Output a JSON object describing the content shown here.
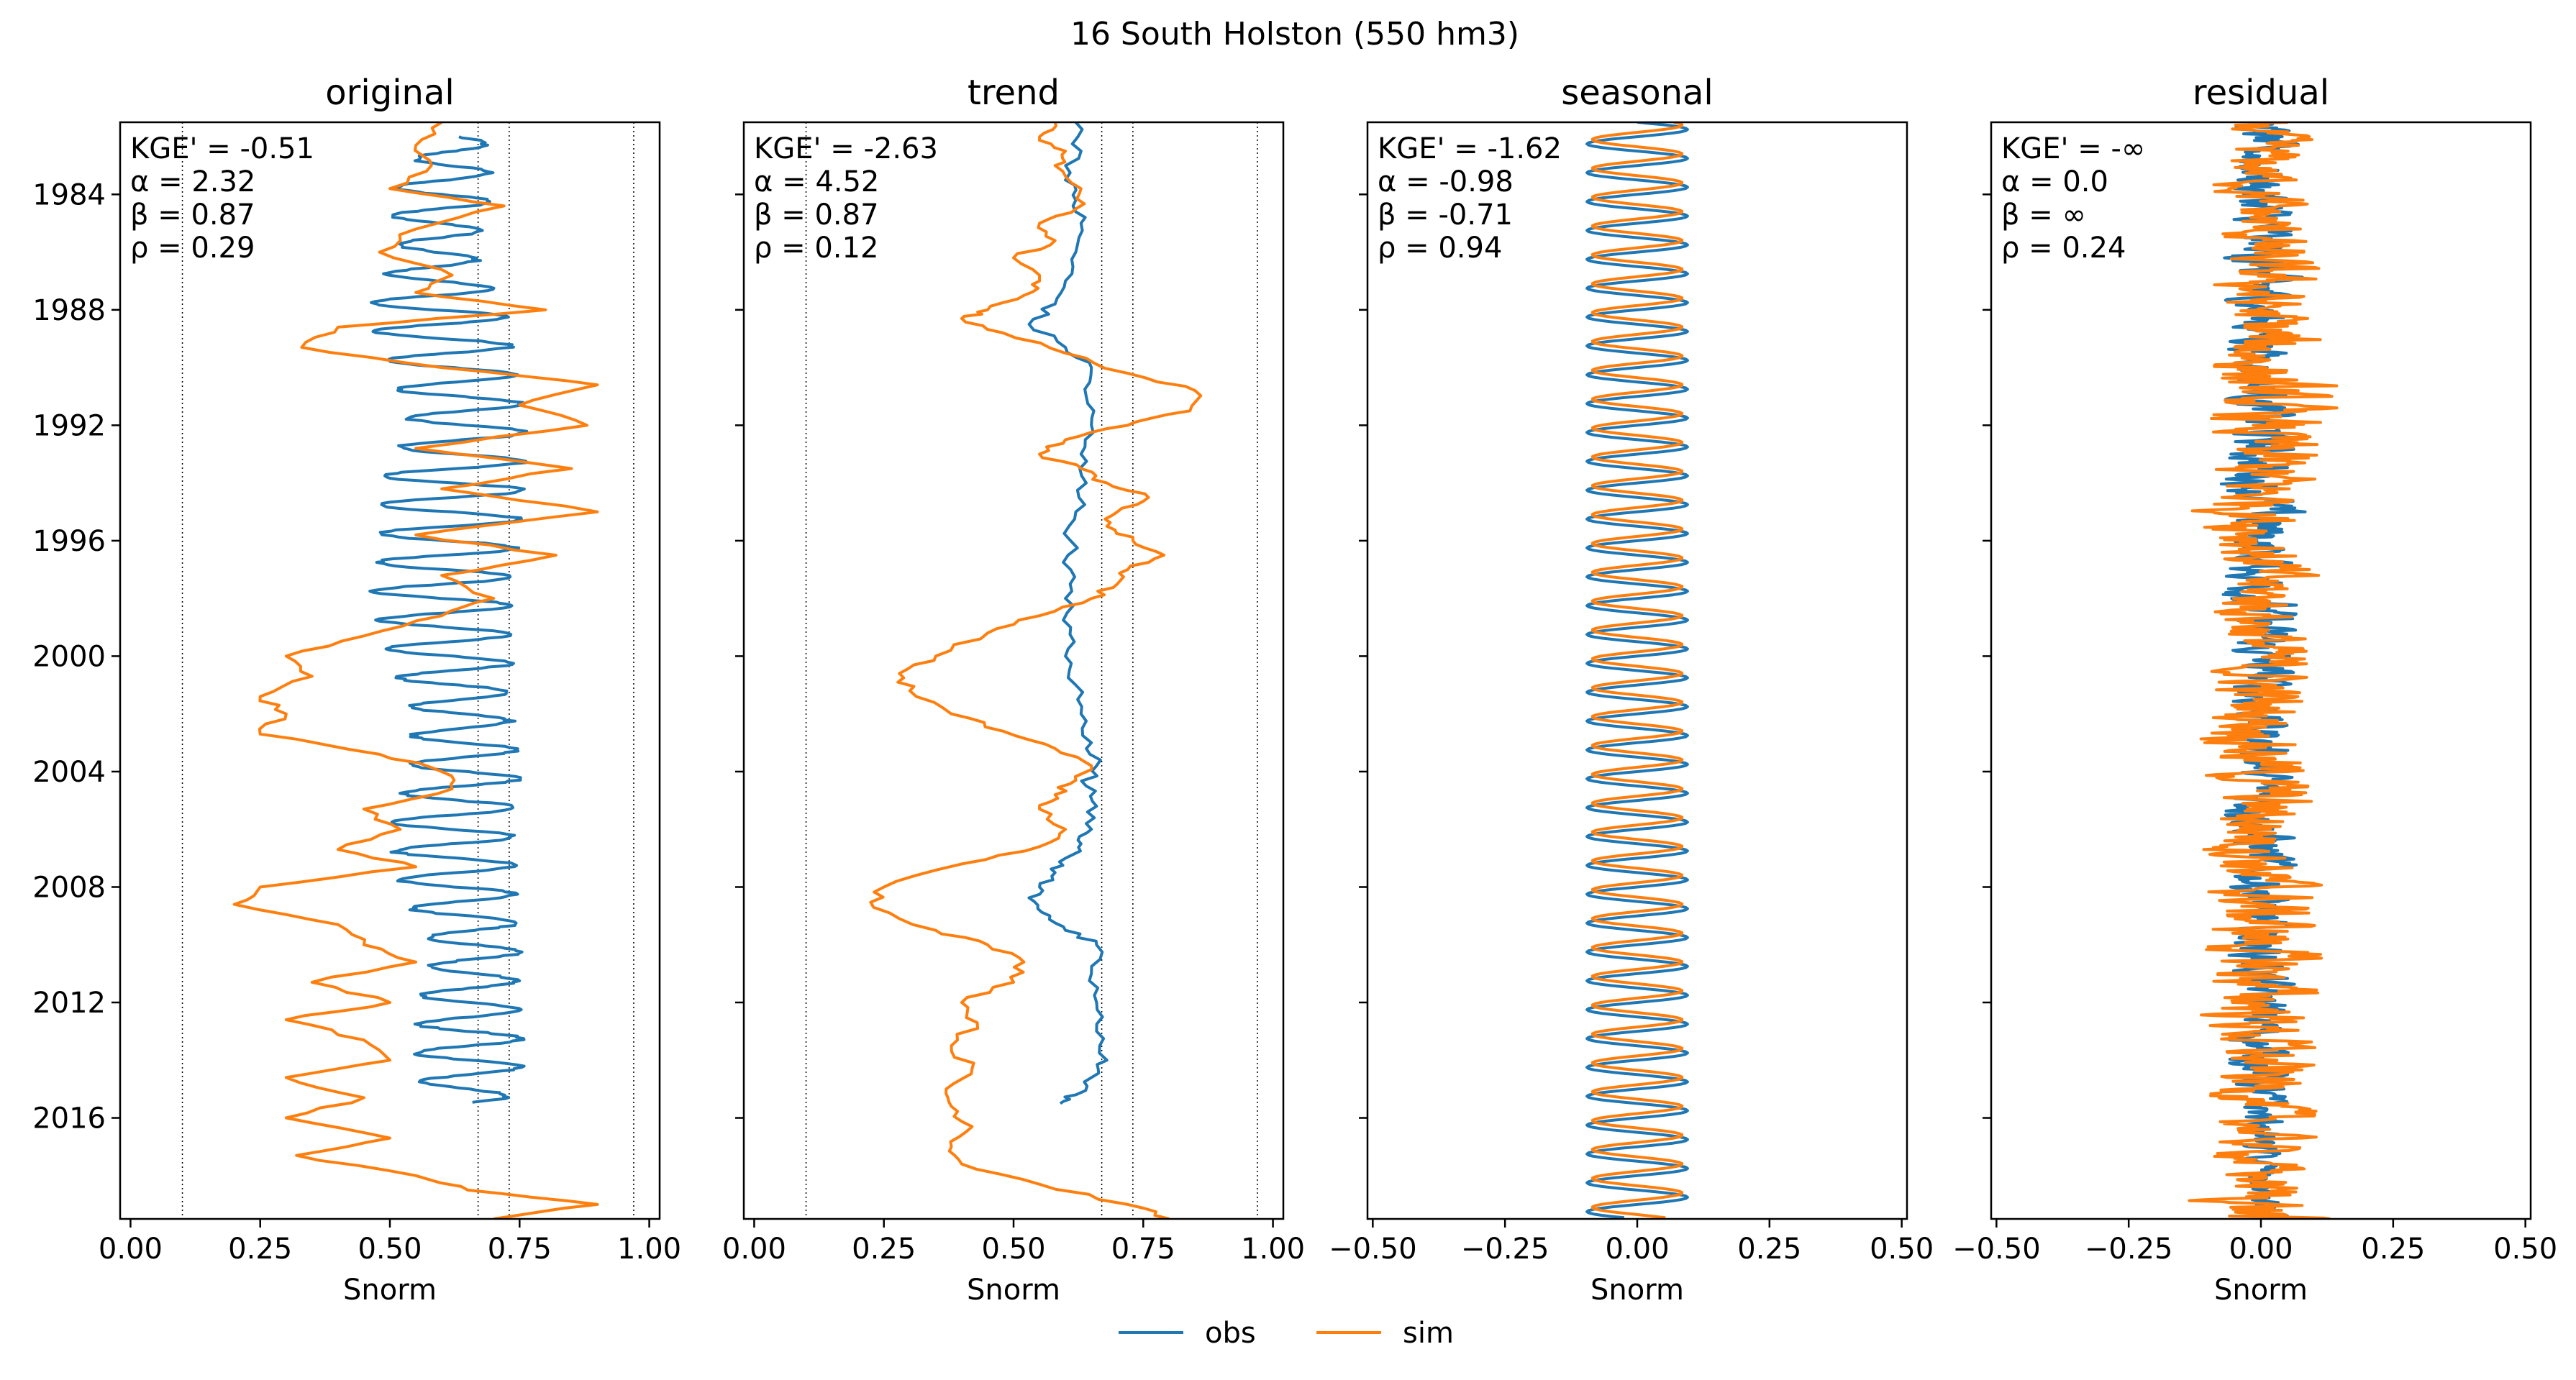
{
  "figure": {
    "suptitle": "16  South Holston (550 hm3)",
    "legend": [
      {
        "label": "obs",
        "color": "#1f77b4"
      },
      {
        "label": "sim",
        "color": "#ff7f0e"
      }
    ]
  },
  "chart_data": [
    {
      "type": "line",
      "title": "original",
      "xlabel": "Snorm",
      "ylabel": "",
      "orientation": "vertical-time",
      "xlim": [
        -0.02,
        1.02
      ],
      "ylim": [
        1981.5,
        2019.5
      ],
      "xticks": [
        0,
        0.25,
        0.5,
        0.75,
        1
      ],
      "xtick_labels": [
        "0.00",
        "0.25",
        "0.50",
        "0.75",
        "1.00"
      ],
      "yticks": [
        1984,
        1988,
        1992,
        1996,
        2000,
        2004,
        2008,
        2012,
        2016
      ],
      "ytick_labels": [
        "1984",
        "1988",
        "1992",
        "1996",
        "2000",
        "2004",
        "2008",
        "2012",
        "2016"
      ],
      "ref_lines": [
        0.1,
        0.67,
        0.73,
        0.97
      ],
      "annotations": [
        "KGE' = -0.51",
        "α = 2.32",
        "β = 0.87",
        "ρ = 0.29"
      ],
      "series": [
        {
          "name": "obs",
          "color": "#1f77b4",
          "kind": "seasonal",
          "y": [
            1982,
            1984,
            1986,
            1988,
            1990,
            1992,
            1994,
            1996,
            1998,
            2000,
            2002,
            2004,
            2006,
            2008,
            2010,
            2012,
            2014,
            2015.5
          ],
          "min": [
            0.58,
            0.5,
            0.52,
            0.46,
            0.5,
            0.54,
            0.48,
            0.48,
            0.47,
            0.5,
            0.55,
            0.54,
            0.5,
            0.52,
            0.58,
            0.56,
            0.55,
            0.58
          ],
          "max": [
            0.68,
            0.7,
            0.66,
            0.72,
            0.74,
            0.76,
            0.76,
            0.74,
            0.74,
            0.73,
            0.73,
            0.75,
            0.74,
            0.74,
            0.75,
            0.75,
            0.76,
            0.72
          ]
        },
        {
          "name": "sim",
          "color": "#ff7f0e",
          "kind": "line",
          "y": [
            1981.5,
            1982.3,
            1983,
            1983.8,
            1984.4,
            1985.2,
            1986,
            1986.8,
            1987.4,
            1988,
            1988.6,
            1989.3,
            1990,
            1990.6,
            1991.3,
            1992,
            1992.8,
            1993.5,
            1994.2,
            1995,
            1995.8,
            1996.5,
            1997.2,
            1998,
            1998.6,
            1999.3,
            2000,
            2000.7,
            2001.4,
            2002,
            2002.7,
            2003.4,
            2004,
            2004.6,
            2005.3,
            2006,
            2006.7,
            2007.3,
            2008,
            2008.6,
            2009.3,
            2010,
            2010.6,
            2011.3,
            2012,
            2012.6,
            2013.3,
            2014,
            2014.6,
            2015.3,
            2016,
            2016.7,
            2017.3,
            2018,
            2018.5,
            2019,
            2019.5
          ],
          "x": [
            0.6,
            0.55,
            0.58,
            0.5,
            0.72,
            0.55,
            0.48,
            0.62,
            0.55,
            0.8,
            0.4,
            0.33,
            0.6,
            0.9,
            0.75,
            0.88,
            0.55,
            0.85,
            0.6,
            0.9,
            0.55,
            0.82,
            0.6,
            0.7,
            0.6,
            0.45,
            0.3,
            0.35,
            0.25,
            0.3,
            0.25,
            0.48,
            0.6,
            0.62,
            0.45,
            0.52,
            0.4,
            0.55,
            0.25,
            0.2,
            0.4,
            0.45,
            0.55,
            0.35,
            0.5,
            0.3,
            0.45,
            0.5,
            0.3,
            0.45,
            0.3,
            0.5,
            0.32,
            0.55,
            0.65,
            0.9,
            0.7
          ]
        }
      ]
    },
    {
      "type": "line",
      "title": "trend",
      "xlabel": "Snorm",
      "ylabel": "",
      "orientation": "vertical-time",
      "xlim": [
        -0.02,
        1.02
      ],
      "ylim": [
        1981.5,
        2019.5
      ],
      "xticks": [
        0,
        0.25,
        0.5,
        0.75,
        1
      ],
      "xtick_labels": [
        "0.00",
        "0.25",
        "0.50",
        "0.75",
        "1.00"
      ],
      "yticks": [
        1984,
        1988,
        1992,
        1996,
        2000,
        2004,
        2008,
        2012,
        2016
      ],
      "ytick_labels": [],
      "ref_lines": [
        0.1,
        0.67,
        0.73,
        0.97
      ],
      "annotations": [
        "KGE' = -2.63",
        "α = 4.52",
        "β = 0.87",
        "ρ = 0.12"
      ],
      "series": [
        {
          "name": "obs",
          "color": "#1f77b4",
          "kind": "line",
          "y": [
            1981.5,
            1982.5,
            1983.5,
            1984.2,
            1985,
            1986,
            1987,
            1987.8,
            1988.5,
            1989.3,
            1990,
            1991,
            1992,
            1993,
            1994,
            1995,
            1996,
            1997,
            1998,
            1999,
            2000,
            2001,
            2002,
            2003,
            2003.8,
            2004.5,
            2005.2,
            2006,
            2006.5,
            2007,
            2007.5,
            2008,
            2008.5,
            2009,
            2009.5,
            2010,
            2011,
            2012,
            2013,
            2014,
            2014.6,
            2015.2,
            2015.5
          ],
          "x": [
            0.62,
            0.63,
            0.6,
            0.62,
            0.63,
            0.62,
            0.6,
            0.58,
            0.53,
            0.6,
            0.65,
            0.64,
            0.65,
            0.63,
            0.64,
            0.62,
            0.61,
            0.61,
            0.6,
            0.61,
            0.6,
            0.62,
            0.63,
            0.65,
            0.66,
            0.64,
            0.66,
            0.65,
            0.63,
            0.6,
            0.58,
            0.55,
            0.54,
            0.57,
            0.6,
            0.66,
            0.65,
            0.66,
            0.66,
            0.68,
            0.65,
            0.62,
            0.59
          ]
        },
        {
          "name": "sim",
          "color": "#ff7f0e",
          "kind": "line",
          "y": [
            1981.5,
            1982,
            1982.5,
            1983,
            1983.8,
            1984.5,
            1985,
            1985.6,
            1986.2,
            1987,
            1987.5,
            1988,
            1988.3,
            1988.8,
            1989.5,
            1990.2,
            1990.8,
            1991.5,
            1992,
            1992.5,
            1993,
            1993.5,
            1994,
            1994.5,
            1995,
            1995.5,
            1996,
            1996.5,
            1997,
            1997.5,
            1998,
            1998.6,
            1999.2,
            2000,
            2000.6,
            2001.2,
            2002,
            2002.6,
            2003.2,
            2003.8,
            2004.3,
            2004.8,
            2005.3,
            2006,
            2006.6,
            2007.2,
            2008,
            2008.7,
            2009.5,
            2010,
            2010.6,
            2011.3,
            2012,
            2012.7,
            2013.5,
            2014.3,
            2015,
            2015.6,
            2016.3,
            2017,
            2017.6,
            2018.3,
            2019,
            2019.5
          ],
          "x": [
            0.58,
            0.55,
            0.6,
            0.58,
            0.63,
            0.62,
            0.55,
            0.58,
            0.5,
            0.55,
            0.52,
            0.45,
            0.4,
            0.48,
            0.6,
            0.72,
            0.85,
            0.84,
            0.72,
            0.6,
            0.55,
            0.63,
            0.68,
            0.76,
            0.7,
            0.68,
            0.73,
            0.79,
            0.72,
            0.7,
            0.65,
            0.55,
            0.45,
            0.35,
            0.28,
            0.3,
            0.38,
            0.48,
            0.58,
            0.65,
            0.62,
            0.58,
            0.55,
            0.6,
            0.55,
            0.4,
            0.25,
            0.23,
            0.35,
            0.45,
            0.52,
            0.5,
            0.4,
            0.43,
            0.38,
            0.42,
            0.37,
            0.38,
            0.42,
            0.38,
            0.4,
            0.55,
            0.72,
            0.8
          ]
        }
      ]
    },
    {
      "type": "line",
      "title": "seasonal",
      "xlabel": "Snorm",
      "ylabel": "",
      "orientation": "vertical-time",
      "xlim": [
        -0.51,
        0.51
      ],
      "ylim": [
        1981.5,
        2019.5
      ],
      "xticks": [
        -0.5,
        -0.25,
        0,
        0.25,
        0.5
      ],
      "xtick_labels": [
        "−0.50",
        "−0.25",
        "0.00",
        "0.25",
        "0.50"
      ],
      "yticks": [
        1984,
        1988,
        1992,
        1996,
        2000,
        2004,
        2008,
        2012,
        2016
      ],
      "ytick_labels": [],
      "ref_lines": [],
      "annotations": [
        "KGE' = -1.62",
        "α = -0.98",
        "β = -0.71",
        "ρ = 0.94"
      ],
      "series": [
        {
          "name": "obs",
          "color": "#1f77b4",
          "kind": "sine",
          "amplitude": 0.095,
          "phase": 0.0
        },
        {
          "name": "sim",
          "color": "#ff7f0e",
          "kind": "sine",
          "amplitude": 0.085,
          "phase": 0.15
        }
      ]
    },
    {
      "type": "line",
      "title": "residual",
      "xlabel": "Snorm",
      "ylabel": "",
      "orientation": "vertical-time",
      "xlim": [
        -0.51,
        0.51
      ],
      "ylim": [
        1981.5,
        2019.5
      ],
      "xticks": [
        -0.5,
        -0.25,
        0,
        0.25,
        0.5
      ],
      "xtick_labels": [
        "−0.50",
        "−0.25",
        "0.00",
        "0.25",
        "0.50"
      ],
      "yticks": [
        1984,
        1988,
        1992,
        1996,
        2000,
        2004,
        2008,
        2012,
        2016
      ],
      "ytick_labels": [],
      "ref_lines": [],
      "annotations": [
        "KGE' = -∞",
        "α = 0.0",
        "β = ∞",
        "ρ = 0.24"
      ],
      "series": [
        {
          "name": "obs",
          "color": "#1f77b4",
          "kind": "noise",
          "y": [
            1982,
            1986,
            1990,
            1994,
            1998,
            2002,
            2006,
            2010,
            2014,
            2018,
            2019.5
          ],
          "amp": [
            0.05,
            0.06,
            0.05,
            0.06,
            0.06,
            0.05,
            0.06,
            0.05,
            0.05,
            0.03,
            0.04
          ]
        },
        {
          "name": "sim",
          "color": "#ff7f0e",
          "kind": "noise",
          "y": [
            1982,
            1986,
            1990,
            1994,
            1998,
            2002,
            2006,
            2010,
            2014,
            2018,
            2019.5
          ],
          "amp": [
            0.07,
            0.08,
            0.1,
            0.1,
            0.08,
            0.09,
            0.09,
            0.1,
            0.09,
            0.07,
            0.12
          ]
        }
      ]
    }
  ]
}
